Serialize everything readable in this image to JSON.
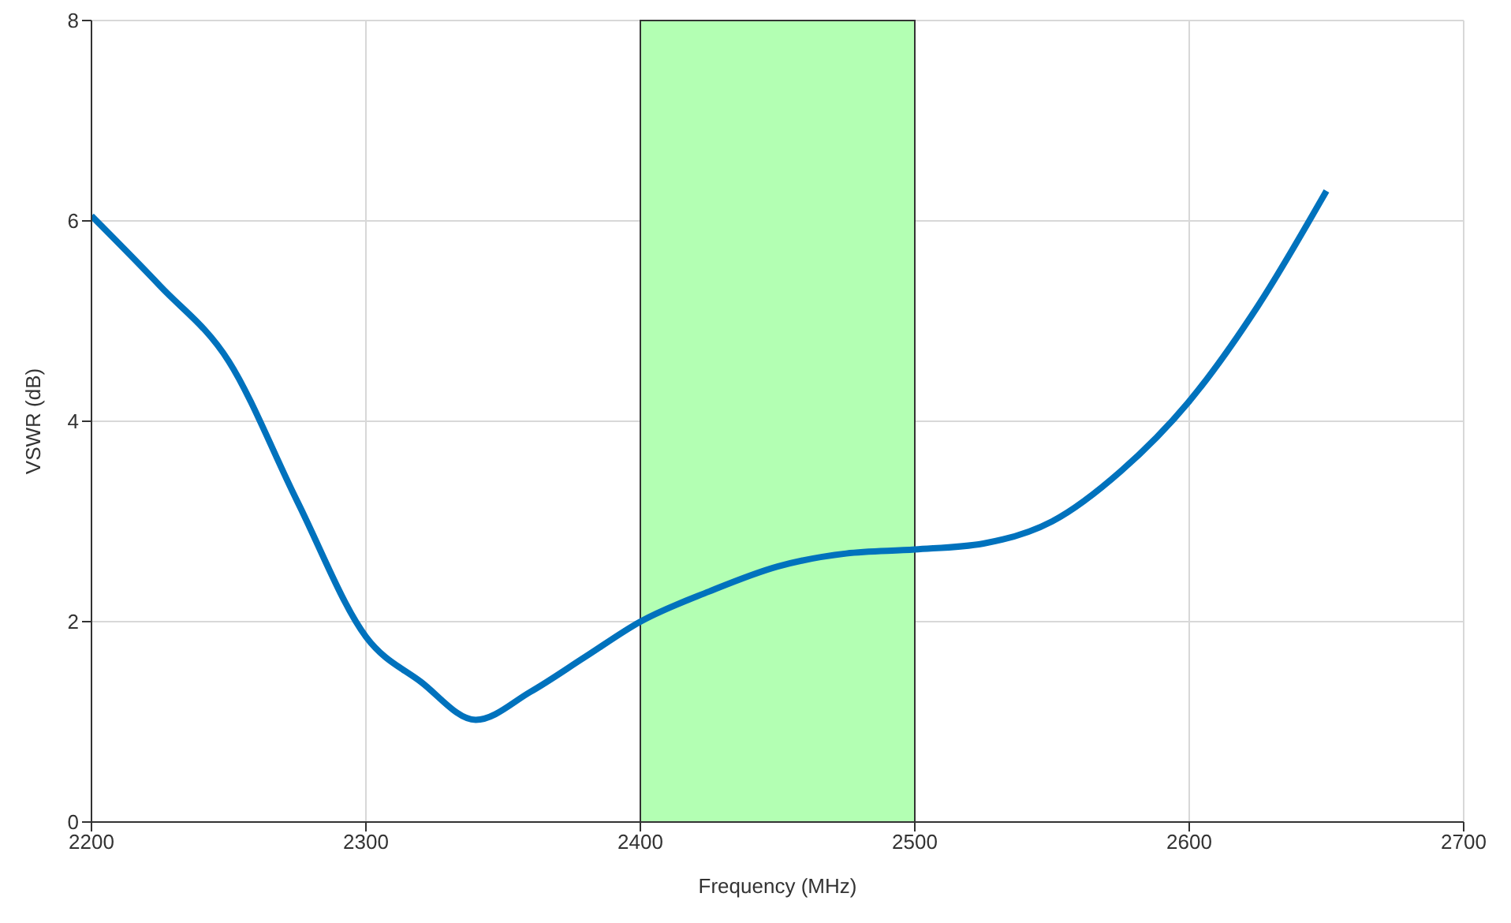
{
  "chart_data": {
    "type": "line",
    "xlabel": "Frequency (MHz)",
    "ylabel": "VSWR (dB)",
    "x": [
      2200,
      2225,
      2250,
      2275,
      2300,
      2320,
      2340,
      2360,
      2380,
      2400,
      2425,
      2450,
      2475,
      2500,
      2525,
      2550,
      2575,
      2600,
      2625,
      2650
    ],
    "series": [
      {
        "color": "#0072bd",
        "values": [
          6.05,
          5.35,
          4.6,
          3.2,
          1.85,
          1.4,
          1.02,
          1.3,
          1.65,
          2.0,
          2.3,
          2.55,
          2.68,
          2.72,
          2.78,
          3.0,
          3.5,
          4.2,
          5.15,
          6.3
        ]
      }
    ],
    "xlim": [
      2200,
      2700
    ],
    "xticks": [
      2200,
      2300,
      2400,
      2500,
      2600,
      2700
    ],
    "ylim": [
      0,
      8
    ],
    "yticks": [
      0,
      2,
      4,
      6,
      8
    ],
    "grid": true,
    "marker": "none",
    "line_style": "solid",
    "bands": [
      {
        "axis": "x",
        "from": 2400,
        "to": 2500,
        "color": "#b3ffb3"
      }
    ]
  }
}
